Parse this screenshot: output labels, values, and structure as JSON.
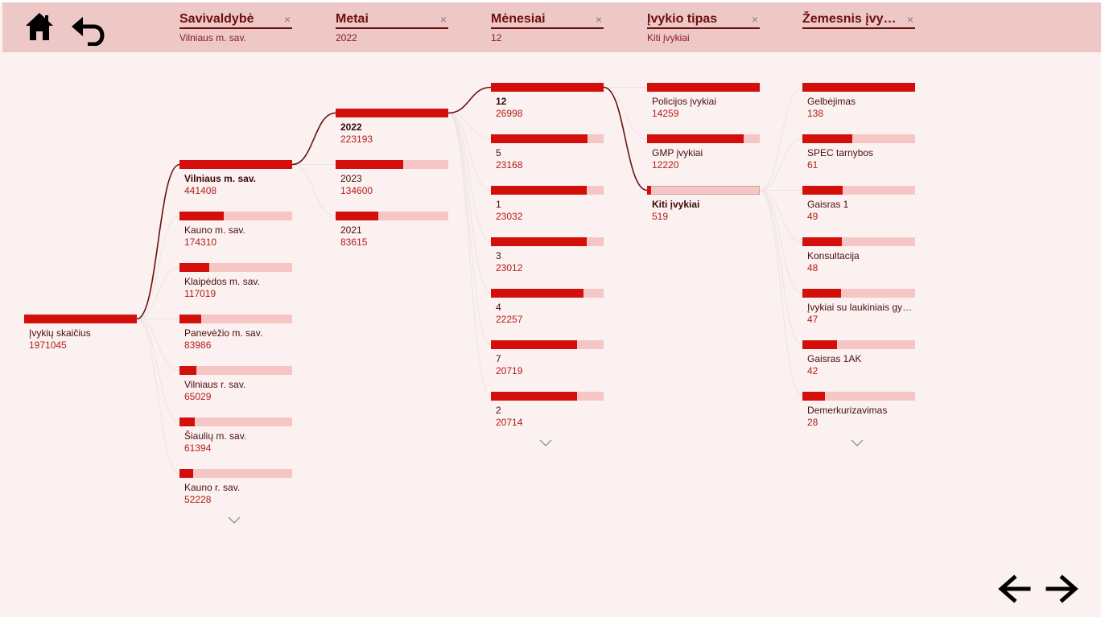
{
  "header": {
    "breadcrumbs": [
      {
        "title": "Savivaldybė",
        "value": "Vilniaus m. sav."
      },
      {
        "title": "Metai",
        "value": "2022"
      },
      {
        "title": "Mėnesiai",
        "value": "12"
      },
      {
        "title": "Įvykio tipas",
        "value": "Kiti įvykiai"
      },
      {
        "title": "Žemesnis įvykio tipas",
        "value": ""
      }
    ],
    "close_glyph": "×"
  },
  "icons": {
    "home": "home-icon",
    "undo": "undo-icon",
    "back": "arrow-left-icon",
    "forward": "arrow-right-icon",
    "more": "chevron-down-icon"
  },
  "colors": {
    "bar": "#d20f0b",
    "bar_bg": "#f6c6c4",
    "link": "#6b0f0f",
    "header_bg": "#edc8c6"
  },
  "tree": {
    "root": {
      "label": "Įvykių skaičius",
      "value": "1971045",
      "fill": 1.0
    },
    "levels": [
      {
        "has_more": true,
        "nodes": [
          {
            "label": "Vilniaus m. sav.",
            "value": "441408",
            "fill": 1.0,
            "selected": true
          },
          {
            "label": "Kauno m. sav.",
            "value": "174310",
            "fill": 0.395
          },
          {
            "label": "Klaipėdos m. sav.",
            "value": "117019",
            "fill": 0.265
          },
          {
            "label": "Panevėžio m. sav.",
            "value": "83986",
            "fill": 0.19
          },
          {
            "label": "Vilniaus r. sav.",
            "value": "65029",
            "fill": 0.147
          },
          {
            "label": "Šiaulių m. sav.",
            "value": "61394",
            "fill": 0.139
          },
          {
            "label": "Kauno r. sav.",
            "value": "52228",
            "fill": 0.118
          }
        ]
      },
      {
        "has_more": false,
        "nodes": [
          {
            "label": "2022",
            "value": "223193",
            "fill": 1.0,
            "selected": true
          },
          {
            "label": "2023",
            "value": "134600",
            "fill": 0.603
          },
          {
            "label": "2021",
            "value": "83615",
            "fill": 0.375
          }
        ]
      },
      {
        "has_more": true,
        "nodes": [
          {
            "label": "12",
            "value": "26998",
            "fill": 1.0,
            "selected": true
          },
          {
            "label": "5",
            "value": "23168",
            "fill": 0.858
          },
          {
            "label": "1",
            "value": "23032",
            "fill": 0.853
          },
          {
            "label": "3",
            "value": "23012",
            "fill": 0.852
          },
          {
            "label": "4",
            "value": "22257",
            "fill": 0.824
          },
          {
            "label": "7",
            "value": "20719",
            "fill": 0.767
          },
          {
            "label": "2",
            "value": "20714",
            "fill": 0.767
          }
        ]
      },
      {
        "has_more": false,
        "nodes": [
          {
            "label": "Policijos įvykiai",
            "value": "14259",
            "fill": 1.0
          },
          {
            "label": "GMP įvykiai",
            "value": "12220",
            "fill": 0.857
          },
          {
            "label": "Kiti įvykiai",
            "value": "519",
            "fill": 0.036,
            "selected": true
          }
        ]
      },
      {
        "has_more": true,
        "nodes": [
          {
            "label": "Gelbėjimas",
            "value": "138",
            "fill": 1.0
          },
          {
            "label": "SPEC tarnybos",
            "value": "61",
            "fill": 0.442
          },
          {
            "label": "Gaisras 1",
            "value": "49",
            "fill": 0.355
          },
          {
            "label": "Konsultacija",
            "value": "48",
            "fill": 0.348
          },
          {
            "label": "Įvykiai su laukiniais gyvūnais",
            "value": "47",
            "fill": 0.341
          },
          {
            "label": "Gaisras 1AK",
            "value": "42",
            "fill": 0.304
          },
          {
            "label": "Demerkurizavimas",
            "value": "28",
            "fill": 0.203
          }
        ]
      }
    ]
  }
}
